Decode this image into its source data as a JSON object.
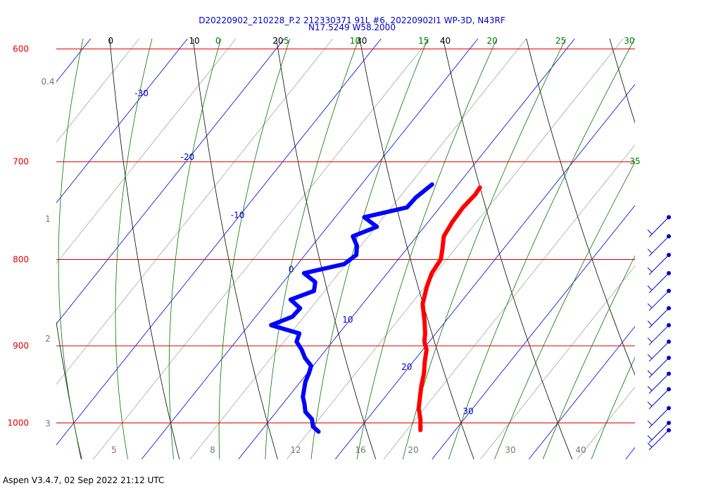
{
  "header": {
    "line1": "D20220902_210228_P.2 212330371 91L #6, 20220902I1 WP-3D, N43RF",
    "line2": "N17.5249 W58.2000"
  },
  "footer": {
    "text": "Aspen V3.4.7, 02 Sep 2022  21:12 UTC"
  },
  "colors": {
    "isobar": "#dd0000",
    "isotherm": "#0000cc",
    "dry_adiabat": "#000000",
    "moist_adiabat": "#007700",
    "mixing_ratio": "#888888",
    "temperature": "#ff0000",
    "dewpoint": "#0000ff",
    "wind": "#0000cc"
  },
  "chart_data": {
    "type": "line",
    "subtype": "skew-t",
    "ylim": [
      600,
      1040
    ],
    "pressure_ticks": [
      "600",
      "700",
      "800",
      "900",
      "1000"
    ],
    "height_ticks": [
      "0.4",
      "1",
      "2",
      "3"
    ],
    "height_tick_pressures": [
      630,
      760,
      895,
      1005
    ],
    "isotherm_labels": [
      "-30",
      "-20",
      "-10",
      "0",
      "10",
      "20",
      "30"
    ],
    "dry_adiabat_labels": [
      "0",
      "10",
      "20",
      "30",
      "40"
    ],
    "moist_adiabat_labels": [
      "0",
      "5",
      "10",
      "15",
      "20",
      "25",
      "30",
      "35"
    ],
    "bottom_ticks": [
      "5",
      "8",
      "12",
      "16",
      "20",
      "30",
      "40"
    ],
    "temperature": {
      "p": [
        725,
        732,
        745,
        760,
        775,
        790,
        800,
        815,
        830,
        850,
        870,
        885,
        895,
        905,
        920,
        935,
        950,
        965,
        980,
        995,
        1010
      ],
      "t": [
        12.5,
        12.6,
        12.4,
        12.5,
        12.8,
        13.8,
        14.4,
        14.6,
        15.2,
        16.2,
        17.8,
        18.9,
        19.5,
        20.4,
        21.2,
        22.1,
        22.8,
        23.6,
        24.4,
        25.5,
        26.4
      ]
    },
    "dewpoint": {
      "p": [
        722,
        735,
        745,
        755,
        765,
        775,
        785,
        795,
        805,
        815,
        825,
        835,
        845,
        855,
        865,
        875,
        885,
        895,
        905,
        915,
        925,
        935,
        945,
        955,
        965,
        975,
        985,
        995,
        1005,
        1012
      ],
      "t": [
        7.3,
        6.7,
        6.6,
        3.0,
        5.1,
        3.4,
        4.6,
        5.3,
        4.8,
        1.4,
        3.3,
        3.9,
        2.2,
        3.9,
        3.8,
        2.3,
        5.9,
        6.3,
        7.5,
        8.5,
        9.8,
        10.2,
        10.5,
        11.0,
        11.5,
        12.3,
        13.0,
        14.3,
        15.0,
        16.0
      ]
    },
    "wind_barb_pressures": [
      755,
      775,
      795,
      815,
      835,
      855,
      875,
      895,
      915,
      935,
      955,
      980,
      1000,
      1010
    ]
  }
}
